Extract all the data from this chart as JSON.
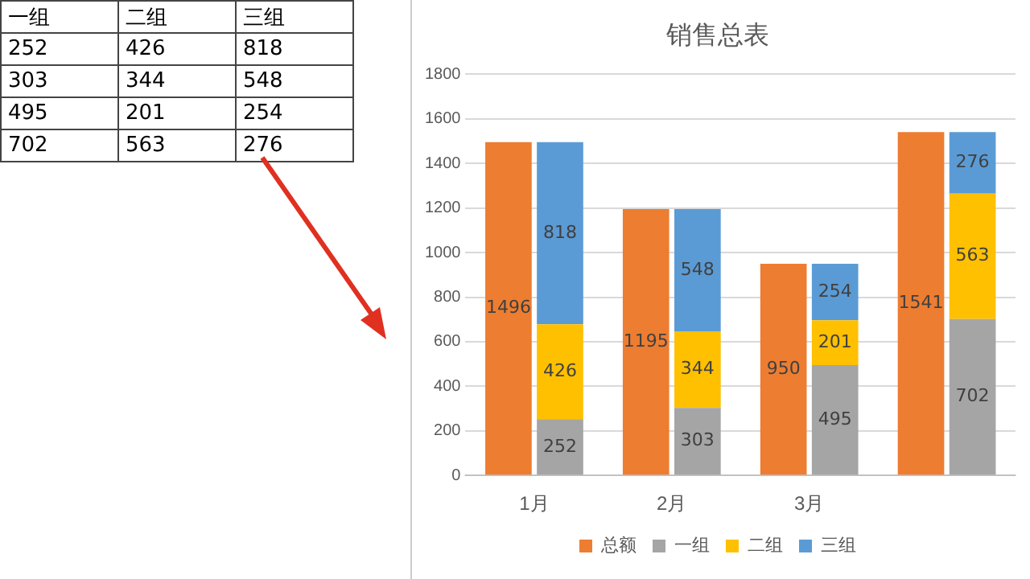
{
  "chart_data": [
    {
      "type": "other",
      "categories": [
        "一组",
        "二组",
        "三组"
      ],
      "annotations": [
        "252",
        "426",
        "818",
        "303",
        "344",
        "548",
        "495",
        "201",
        "254",
        "702",
        "563",
        "276"
      ]
    },
    {
      "type": "bar",
      "title": "销售总表",
      "categories": [
        "1月",
        "2月",
        "3月",
        null
      ],
      "series": [
        {
          "name": "总额",
          "color": "#ed7d31",
          "values": [
            1496,
            1195,
            950,
            1541
          ]
        },
        {
          "name": "一组",
          "color": "#a5a5a5",
          "values": [
            252,
            303,
            495,
            702
          ],
          "base": [
            0,
            0,
            0,
            0
          ]
        },
        {
          "name": "二组",
          "color": "#ffc000",
          "values": [
            426,
            344,
            201,
            563
          ],
          "base": [
            252,
            303,
            495,
            702
          ]
        },
        {
          "name": "三组",
          "color": "#5b9bd5",
          "values": [
            818,
            548,
            254,
            276
          ],
          "base": [
            678,
            647,
            696,
            1265
          ]
        }
      ],
      "ylim": [
        0,
        1800
      ],
      "yticks": [
        0,
        200,
        400,
        600,
        800,
        1000,
        1200,
        1400,
        1600,
        1800
      ],
      "grid": "y",
      "legend": "bottom",
      "data_labels": true
    }
  ]
}
